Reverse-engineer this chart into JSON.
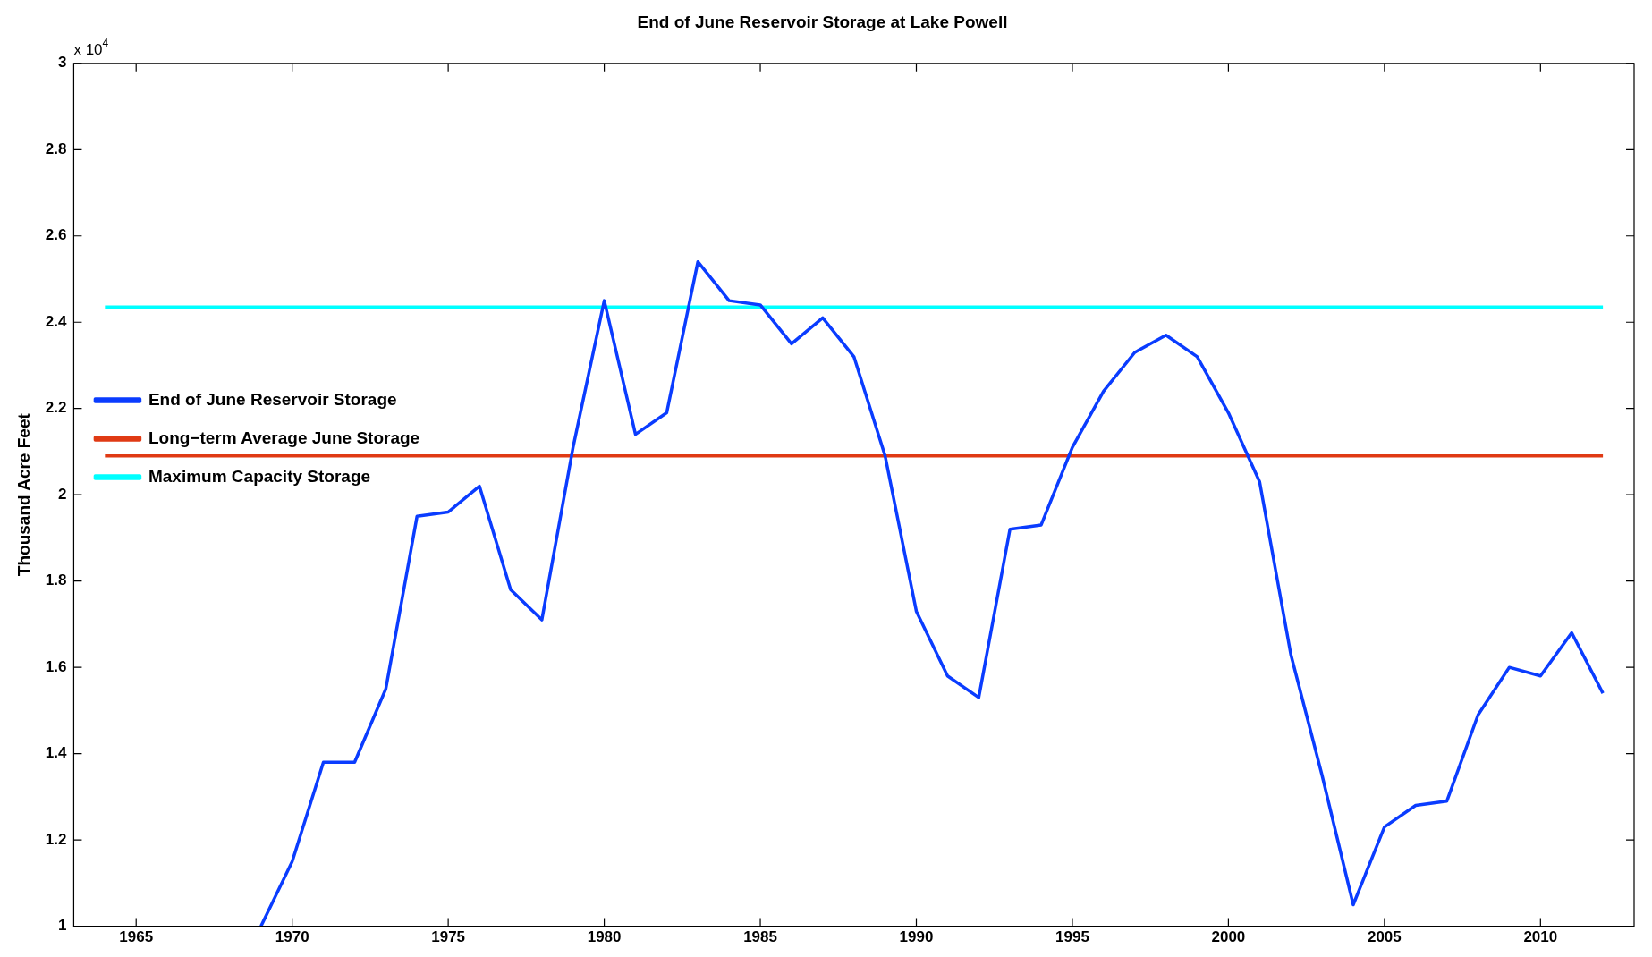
{
  "chart_data": {
    "type": "line",
    "title": "End of June Reservoir Storage at Lake Powell",
    "ylabel": "Thousand Acre Feet",
    "annotations": [
      "x 10$^{4}$"
    ],
    "xlim": [
      1963,
      2013
    ],
    "xticks": [
      1965,
      1970,
      1975,
      1980,
      1985,
      1990,
      1995,
      2000,
      2005,
      2010
    ],
    "ylim": [
      1,
      3
    ],
    "yticks": [
      1,
      1.2,
      1.4,
      1.6,
      1.8,
      2,
      2.2,
      2.4,
      2.6,
      2.8,
      3
    ],
    "grid": false,
    "legend": "top",
    "marker": "none",
    "line_style": "solid",
    "series": [
      {
        "name": "End of June Reservoir Storage",
        "color": "#0a3cff",
        "x": [
          1969,
          1970,
          1971,
          1972,
          1973,
          1974,
          1975,
          1976,
          1977,
          1978,
          1979,
          1980,
          1981,
          1982,
          1983,
          1984,
          1985,
          1986,
          1987,
          1988,
          1989,
          1990,
          1991,
          1992,
          1993,
          1994,
          1995,
          1996,
          1997,
          1998,
          1999,
          2000,
          2001,
          2002,
          2003,
          2004,
          2005,
          2006,
          2007,
          2008,
          2009,
          2010,
          2011,
          2012
        ],
        "values": [
          1.0,
          1.15,
          1.38,
          1.38,
          1.55,
          1.95,
          1.96,
          2.02,
          1.78,
          1.71,
          2.11,
          2.45,
          2.14,
          2.19,
          2.54,
          2.45,
          2.44,
          2.35,
          2.41,
          2.32,
          2.09,
          1.73,
          1.58,
          1.53,
          1.92,
          1.93,
          2.11,
          2.24,
          2.33,
          2.37,
          2.32,
          2.19,
          2.03,
          1.63,
          1.35,
          1.05,
          1.23,
          1.28,
          1.29,
          1.49,
          1.6,
          1.58,
          1.68,
          1.54
        ]
      },
      {
        "name": "Long−term Average June Storage",
        "color": "#e03a14",
        "x": [
          1964,
          2012
        ],
        "values": [
          2.09,
          2.09
        ]
      },
      {
        "name": "Maximum Capacity Storage",
        "color": "#00ffff",
        "x": [
          1964,
          2012
        ],
        "values": [
          2.435,
          2.435
        ]
      }
    ]
  }
}
